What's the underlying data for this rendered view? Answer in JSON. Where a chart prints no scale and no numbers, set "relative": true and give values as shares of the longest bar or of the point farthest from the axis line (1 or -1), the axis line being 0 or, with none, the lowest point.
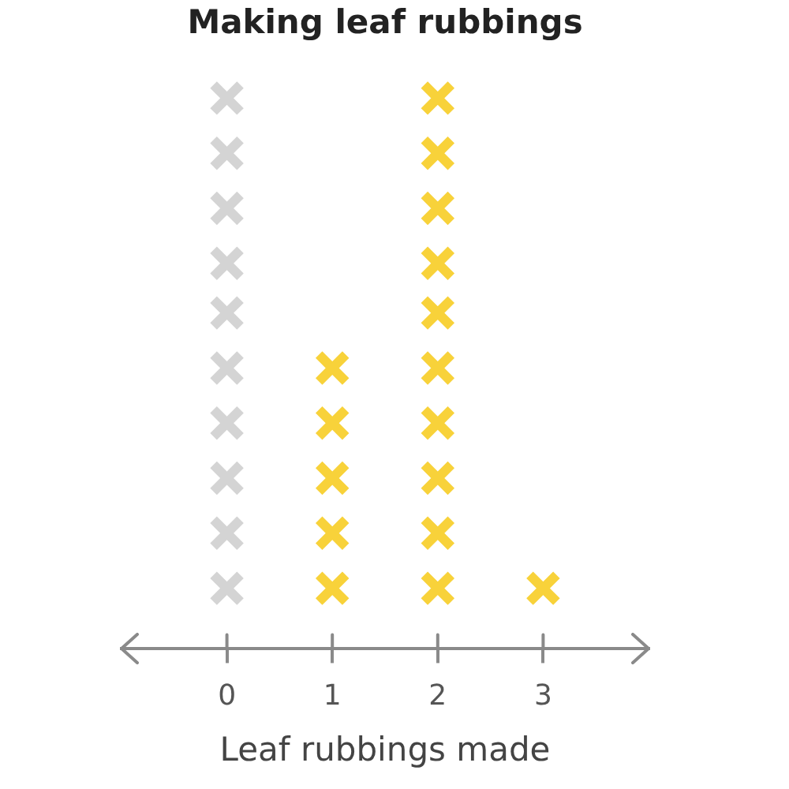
{
  "chart_data": {
    "type": "scatter",
    "title": "Making leaf rubbings",
    "xlabel": "Leaf rubbings made",
    "xlim": [
      -1,
      4
    ],
    "xticks": [
      0,
      1,
      2,
      3
    ],
    "relative": true,
    "tick_labels": "x",
    "marker": "cross",
    "series": [
      {
        "color": "#d4d4d4",
        "x": [
          0,
          0,
          0,
          0,
          0,
          0,
          0,
          0,
          0,
          0
        ],
        "values": [
          0.11,
          0.21,
          0.31,
          0.41,
          0.51,
          0.61,
          0.7,
          0.8,
          0.9,
          1
        ]
      },
      {
        "color": "#f8d23a",
        "x": [
          1,
          1,
          1,
          1,
          1,
          2,
          2,
          2,
          2,
          2,
          2,
          2,
          2,
          2,
          2,
          3
        ],
        "values": [
          0.11,
          0.21,
          0.31,
          0.41,
          0.51,
          0.11,
          0.21,
          0.31,
          0.41,
          0.51,
          0.61,
          0.7,
          0.8,
          0.9,
          1,
          0.11
        ]
      }
    ]
  }
}
